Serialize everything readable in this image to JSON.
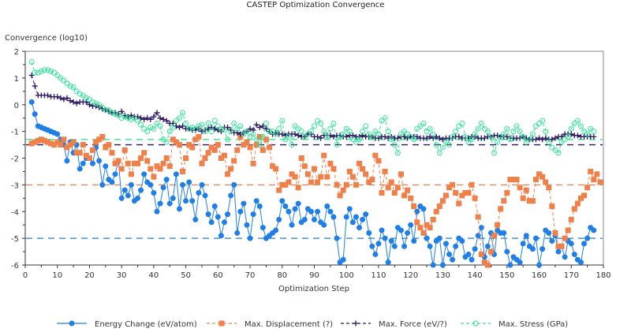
{
  "chart_data": {
    "type": "line",
    "title": "CASTEP Optimization Convergence",
    "xlabel": "Optimization Step",
    "ylabel": "Convergence (log10)",
    "xlim": [
      0,
      180
    ],
    "ylim": [
      -6,
      2
    ],
    "xticks": [
      0,
      10,
      20,
      30,
      40,
      50,
      60,
      70,
      80,
      90,
      100,
      110,
      120,
      130,
      140,
      150,
      160,
      170,
      180
    ],
    "yticks": [
      -6,
      -5,
      -4,
      -3,
      -2,
      -1,
      0,
      1,
      2
    ],
    "grid": false,
    "legend_position": "bottom",
    "series": [
      {
        "name": "Energy Change (eV/atom)",
        "color": "#1f7fe6",
        "marker": "circle-filled",
        "line": "solid",
        "threshold": -5,
        "start_x": 2,
        "values": [
          0.1,
          -0.35,
          -0.8,
          -0.85,
          -0.9,
          -0.95,
          -1.0,
          -1.05,
          -1.1,
          -1.3,
          -1.5,
          -2.1,
          -1.4,
          -1.8,
          -1.5,
          -2.4,
          -2.2,
          -2.0,
          -2.0,
          -2.2,
          -1.6,
          -2.1,
          -3.0,
          -2.3,
          -2.8,
          -2.9,
          -2.6,
          -2.1,
          -3.5,
          -3.2,
          -3.4,
          -3.0,
          -3.6,
          -3.5,
          -3.2,
          -2.6,
          -2.9,
          -3.0,
          -3.3,
          -4.0,
          -3.7,
          -3.1,
          -2.8,
          -3.7,
          -3.5,
          -2.6,
          -3.9,
          -3.0,
          -3.6,
          -2.9,
          -3.6,
          -4.3,
          -3.3,
          -3.0,
          -3.4,
          -4.1,
          -4.4,
          -3.8,
          -4.2,
          -4.9,
          -4.4,
          -4.1,
          -3.4,
          -3.0,
          -4.8,
          -4.0,
          -3.7,
          -4.5,
          -5.0,
          -4.1,
          -3.6,
          -3.8,
          -4.6,
          -5.0,
          -4.9,
          -4.8,
          -4.7,
          -4.3,
          -3.6,
          -3.8,
          -4.0,
          -4.5,
          -3.9,
          -3.7,
          -4.4,
          -4.3,
          -3.9,
          -4.0,
          -4.3,
          -4.0,
          -4.4,
          -4.5,
          -3.8,
          -4.0,
          -4.2,
          -5.0,
          -5.9,
          -5.8,
          -4.2,
          -3.9,
          -4.4,
          -4.2,
          -4.6,
          -4.3,
          -4.1,
          -4.8,
          -5.3,
          -5.6,
          -5.2,
          -4.7,
          -5.0,
          -5.9,
          -5.1,
          -5.3,
          -4.6,
          -4.7,
          -5.3,
          -4.8,
          -4.5,
          -5.1,
          -4.0,
          -3.8,
          -3.9,
          -5.0,
          -5.3,
          -6.0,
          -5.1,
          -5.0,
          -6.0,
          -5.2,
          -5.6,
          -5.8,
          -5.3,
          -5.0,
          -5.1,
          -5.7,
          -5.6,
          -5.8,
          -5.4,
          -4.9,
          -4.6,
          -5.7,
          -5.3,
          -4.8,
          -5.6,
          -4.7,
          -4.8,
          -4.8,
          -5.5,
          -6.0,
          -5.7,
          -5.8,
          -5.9,
          -5.2,
          -4.9,
          -5.3,
          -5.4,
          -5.0,
          -6.0,
          -5.4,
          -4.7,
          -4.8,
          -5.1,
          -4.9,
          -5.5,
          -5.3,
          -5.7,
          -5.1,
          -5.2,
          -5.6,
          -5.8,
          -5.9,
          -5.2,
          -5.0,
          -4.6,
          -4.7
        ]
      },
      {
        "name": "Max. Displacement (?)",
        "color": "#f0804a",
        "marker": "square-filled",
        "line": "dashed",
        "threshold": -3,
        "start_x": 2,
        "values": [
          -1.45,
          -1.4,
          -1.35,
          -1.3,
          -1.35,
          -1.4,
          -1.45,
          -1.5,
          -1.4,
          -1.5,
          -1.3,
          -1.6,
          -1.5,
          -1.4,
          -1.8,
          -1.8,
          -1.5,
          -1.9,
          -2.0,
          -1.7,
          -1.4,
          -1.3,
          -1.2,
          -1.6,
          -1.5,
          -1.8,
          -2.2,
          -2.1,
          -2.4,
          -1.7,
          -2.2,
          -2.6,
          -2.2,
          -2.2,
          -2.0,
          -1.8,
          -2.1,
          -2.4,
          -2.7,
          -2.3,
          -2.4,
          -2.2,
          -2.0,
          -2.3,
          -1.3,
          -1.4,
          -1.5,
          -2.5,
          -2.0,
          -1.5,
          -1.6,
          -1.3,
          -1.2,
          -2.2,
          -2.0,
          -1.8,
          -1.6,
          -1.7,
          -1.5,
          -2.0,
          -1.9,
          -2.6,
          -2.4,
          -2.1,
          -1.7,
          -1.2,
          -1.5,
          -1.4,
          -1.6,
          -2.2,
          -1.5,
          -1.2,
          -1.7,
          -1.3,
          -1.6,
          -2.3,
          -2.4,
          -3.2,
          -3.0,
          -3.0,
          -2.9,
          -2.6,
          -2.7,
          -3.1,
          -2.0,
          -2.3,
          -2.6,
          -2.9,
          -2.4,
          -2.9,
          -2.7,
          -1.9,
          -2.7,
          -2.2,
          -2.4,
          -3.0,
          -3.4,
          -3.2,
          -3.0,
          -2.5,
          -2.7,
          -3.0,
          -2.2,
          -2.4,
          -2.6,
          -2.9,
          -2.8,
          -1.9,
          -2.1,
          -3.3,
          -2.5,
          -3.1,
          -2.9,
          -3.3,
          -3.1,
          -2.6,
          -3.4,
          -3.2,
          -3.5,
          -3.8,
          -4.4,
          -4.6,
          -4.8,
          -4.5,
          -4.6,
          -4.3,
          -4.0,
          -3.8,
          -3.6,
          -3.4,
          -3.1,
          -3.0,
          -3.3,
          -3.7,
          -3.4,
          -3.3,
          -3.3,
          -3.0,
          -3.5,
          -4.2,
          -5.6,
          -5.9,
          -6.0,
          -5.5,
          -4.9,
          -4.5,
          -3.9,
          -3.6,
          -3.3,
          -2.8,
          -2.8,
          -2.8,
          -3.1,
          -3.5,
          -3.2,
          -3.6,
          -3.6,
          -2.8,
          -2.6,
          -2.7,
          -2.9,
          -3.1,
          -3.8,
          -4.8,
          -5.3,
          -5.3,
          -5.0,
          -4.7,
          -4.3,
          -3.9,
          -3.7,
          -3.5,
          -3.4,
          -3.1,
          -2.5,
          -2.8,
          -2.6,
          -2.9
        ]
      },
      {
        "name": "Max. Force (eV/?)",
        "color": "#2b1560",
        "marker": "plus",
        "line": "dashed",
        "threshold": -1.5,
        "start_x": 2,
        "values": [
          1.1,
          0.7,
          0.35,
          0.35,
          0.35,
          0.35,
          0.3,
          0.3,
          0.3,
          0.25,
          0.2,
          0.25,
          0.15,
          0.1,
          0.05,
          0.1,
          0.1,
          0.1,
          0.0,
          -0.05,
          -0.05,
          -0.1,
          -0.15,
          -0.2,
          -0.25,
          -0.3,
          -0.3,
          -0.35,
          -0.25,
          -0.4,
          -0.45,
          -0.4,
          -0.45,
          -0.45,
          -0.5,
          -0.55,
          -0.5,
          -0.55,
          -0.45,
          -0.3,
          -0.5,
          -0.55,
          -0.6,
          -0.7,
          -0.7,
          -0.8,
          -0.85,
          -0.8,
          -0.9,
          -0.9,
          -0.95,
          -0.95,
          -0.9,
          -1.0,
          -0.95,
          -0.9,
          -0.85,
          -0.9,
          -0.95,
          -1.0,
          -0.85,
          -0.85,
          -0.95,
          -1.05,
          -1.05,
          -1.1,
          -1.05,
          -1.0,
          -0.9,
          -0.95,
          -0.75,
          -0.85,
          -0.8,
          -0.9,
          -1.0,
          -1.1,
          -1.05,
          -1.1,
          -1.1,
          -1.15,
          -1.1,
          -1.1,
          -1.1,
          -1.15,
          -1.2,
          -1.2,
          -1.1,
          -1.1,
          -1.2,
          -1.2,
          -1.25,
          -1.15,
          -1.15,
          -1.15,
          -1.2,
          -1.15,
          -1.15,
          -1.2,
          -1.2,
          -1.15,
          -1.15,
          -1.2,
          -1.2,
          -1.15,
          -1.2,
          -1.2,
          -1.2,
          -1.25,
          -1.25,
          -1.2,
          -1.2,
          -1.25,
          -1.2,
          -1.25,
          -1.25,
          -1.2,
          -1.2,
          -1.25,
          -1.2,
          -1.2,
          -1.2,
          -1.25,
          -1.25,
          -1.25,
          -1.2,
          -1.25,
          -1.2,
          -1.25,
          -1.3,
          -1.25,
          -1.25,
          -1.25,
          -1.2,
          -1.2,
          -1.25,
          -1.25,
          -1.25,
          -1.2,
          -1.2,
          -1.25,
          -1.25,
          -1.25,
          -1.2,
          -1.2,
          -1.15,
          -1.15,
          -1.2,
          -1.2,
          -1.2,
          -1.25,
          -1.25,
          -1.25,
          -1.25,
          -1.2,
          -1.25,
          -1.3,
          -1.3,
          -1.3,
          -1.25,
          -1.3,
          -1.25,
          -1.3,
          -1.3,
          -1.25,
          -1.2,
          -1.2,
          -1.1,
          -1.1,
          -1.1,
          -1.15,
          -1.15,
          -1.2,
          -1.2,
          -1.2,
          -1.2,
          -1.2
        ]
      },
      {
        "name": "Max. Stress (GPa)",
        "color": "#35e39a",
        "marker": "circle-open",
        "line": "dashed",
        "threshold": -1.3,
        "start_x": 2,
        "values": [
          1.6,
          1.2,
          1.2,
          1.25,
          1.3,
          1.3,
          1.25,
          1.2,
          1.1,
          1.0,
          0.9,
          0.8,
          0.7,
          0.65,
          0.5,
          0.4,
          0.35,
          0.25,
          0.2,
          0.1,
          0.05,
          0.0,
          -0.1,
          -0.2,
          -0.2,
          -0.3,
          -0.35,
          -0.4,
          -0.5,
          -0.45,
          -0.5,
          -0.55,
          -0.5,
          -0.6,
          -0.75,
          -0.9,
          -1.0,
          -0.85,
          -0.9,
          -0.7,
          -0.8,
          -1.3,
          -1.4,
          -1.0,
          -0.85,
          -0.6,
          -0.5,
          -0.3,
          -0.7,
          -0.9,
          -0.85,
          -0.9,
          -0.8,
          -0.75,
          -1.0,
          -0.7,
          -1.0,
          -0.6,
          -0.8,
          -0.9,
          -0.95,
          -1.3,
          -1.0,
          -0.7,
          -0.9,
          -0.8,
          -1.1,
          -1.0,
          -1.2,
          -1.1,
          -1.3,
          -1.5,
          -1.2,
          -0.7,
          -1.0,
          -1.0,
          -1.1,
          -0.9,
          -0.6,
          -1.3,
          -1.2,
          -1.5,
          -0.8,
          -0.9,
          -1.0,
          -1.2,
          -1.1,
          -1.0,
          -0.8,
          -0.6,
          -0.7,
          -1.0,
          -1.2,
          -0.9,
          -0.7,
          -1.5,
          -1.2,
          -1.1,
          -0.9,
          -1.0,
          -1.3,
          -1.4,
          -1.3,
          -1.0,
          -0.8,
          -1.1,
          -1.2,
          -1.0,
          -1.1,
          -0.6,
          -0.5,
          -1.0,
          -1.3,
          -1.5,
          -1.8,
          -1.1,
          -1.0,
          -1.1,
          -1.2,
          -1.3,
          -0.9,
          -0.8,
          -0.7,
          -1.0,
          -0.9,
          -1.1,
          -1.5,
          -1.8,
          -1.6,
          -1.4,
          -1.5,
          -1.2,
          -1.0,
          -0.8,
          -0.7,
          -1.2,
          -1.4,
          -1.3,
          -1.1,
          -0.9,
          -0.7,
          -0.9,
          -1.0,
          -1.2,
          -1.8,
          -1.4,
          -1.2,
          -1.1,
          -0.9,
          -1.3,
          -1.0,
          -0.8,
          -1.0,
          -1.2,
          -1.4,
          -1.3,
          -1.1,
          -0.8,
          -0.7,
          -0.6,
          -1.0,
          -1.4,
          -1.6,
          -1.7,
          -1.8,
          -1.4,
          -1.3,
          -1.2,
          -0.9,
          -0.7,
          -0.6,
          -0.8,
          -1.0,
          -1.1,
          -0.9,
          -1.0
        ]
      }
    ]
  }
}
